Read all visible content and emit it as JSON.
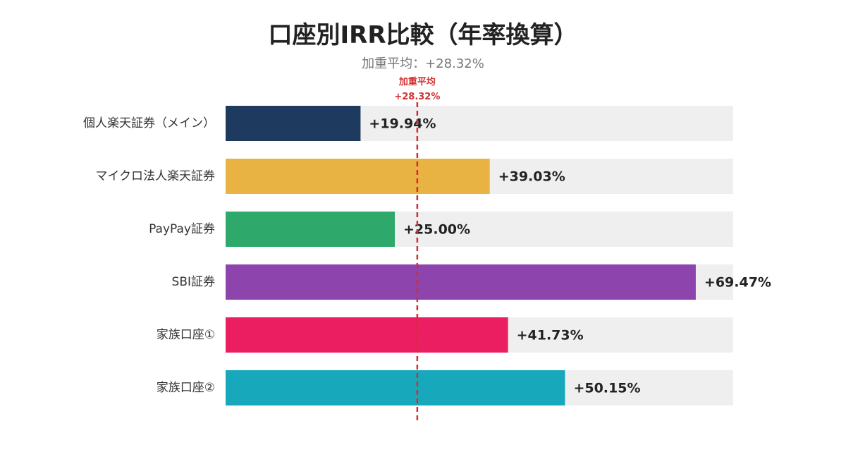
{
  "chart_data": {
    "type": "bar",
    "orientation": "horizontal",
    "title": "口座別IRR比較（年率換算）",
    "subtitle": "加重平均：+28.32%",
    "categories": [
      "個人楽天証券（メイン）",
      "マイクロ法人楽天証券",
      "PayPay証券",
      "SBI証券",
      "家族口座①",
      "家族口座②"
    ],
    "values": [
      19.94,
      39.03,
      25.0,
      69.47,
      41.73,
      50.15
    ],
    "value_labels": [
      "+19.94%",
      "+39.03%",
      "+25.00%",
      "+69.47%",
      "+41.73%",
      "+50.15%"
    ],
    "colors": [
      "#1f3a5f",
      "#e8b342",
      "#2ea86b",
      "#8e44ad",
      "#ec1e62",
      "#17a8bb"
    ],
    "background_bar_color": "#efefef",
    "xlim": [
      0,
      75
    ],
    "grid": false,
    "reference_line": {
      "value": 28.32,
      "label_line1": "加重平均",
      "label_line2": "+28.32%",
      "color": "#d32f2f",
      "style": "dashed"
    }
  }
}
